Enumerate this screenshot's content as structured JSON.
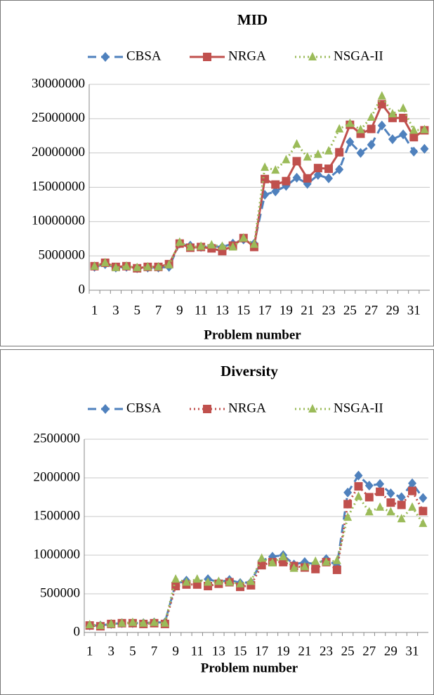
{
  "chart_data": [
    {
      "type": "line",
      "title": "MID",
      "x_label": "Problem number",
      "categories": [
        1,
        null,
        3,
        null,
        5,
        null,
        7,
        null,
        9,
        null,
        11,
        null,
        13,
        null,
        15,
        null,
        17,
        null,
        19,
        null,
        21,
        null,
        23,
        null,
        25,
        null,
        27,
        null,
        29,
        null,
        31,
        null
      ],
      "ylim": [
        0,
        30000000
      ],
      "yticks": [
        0,
        5000000,
        10000000,
        15000000,
        20000000,
        25000000,
        30000000
      ],
      "grid": true,
      "series": [
        {
          "name": "CBSA",
          "color": "#4f81bd",
          "dash": "dashed",
          "marker": "diamond",
          "values": [
            3400000,
            3800000,
            3300000,
            3400000,
            3200000,
            3300000,
            3300000,
            3400000,
            6800000,
            6500000,
            6300000,
            6400000,
            6300000,
            6800000,
            7400000,
            6800000,
            13900000,
            14400000,
            15200000,
            16400000,
            15500000,
            16800000,
            16300000,
            17600000,
            21600000,
            20000000,
            21200000,
            24000000,
            22000000,
            22700000,
            20200000,
            20600000
          ]
        },
        {
          "name": "NRGA",
          "color": "#c0504d",
          "dash": "solid",
          "marker": "square",
          "values": [
            3500000,
            4000000,
            3400000,
            3500000,
            3200000,
            3400000,
            3400000,
            3800000,
            6800000,
            6200000,
            6300000,
            6100000,
            5700000,
            6500000,
            7600000,
            6300000,
            16200000,
            15400000,
            15900000,
            18800000,
            16300000,
            17800000,
            17700000,
            20100000,
            24100000,
            22800000,
            23500000,
            27100000,
            25100000,
            25100000,
            22300000,
            23300000
          ]
        },
        {
          "name": "NSGA-II",
          "color": "#9bbb59",
          "dash": "dotted",
          "marker": "triangle",
          "values": [
            3500000,
            4000000,
            3300000,
            3500000,
            3300000,
            3400000,
            3400000,
            3700000,
            7000000,
            6300000,
            6400000,
            6600000,
            6400000,
            6300000,
            7600000,
            6700000,
            17900000,
            17500000,
            19000000,
            21300000,
            19400000,
            19800000,
            20300000,
            23500000,
            24300000,
            23400000,
            25200000,
            28300000,
            25700000,
            26500000,
            23300000,
            23400000
          ]
        }
      ]
    },
    {
      "type": "line",
      "title": "Diversity",
      "x_label": "Problem number",
      "categories": [
        1,
        null,
        3,
        null,
        5,
        null,
        7,
        null,
        9,
        null,
        11,
        null,
        13,
        null,
        15,
        null,
        17,
        null,
        19,
        null,
        21,
        null,
        23,
        null,
        25,
        null,
        27,
        null,
        29,
        null,
        31,
        null
      ],
      "ylim": [
        0,
        2500000
      ],
      "yticks": [
        0,
        500000,
        1000000,
        1500000,
        2000000,
        2500000
      ],
      "grid": true,
      "series": [
        {
          "name": "CBSA",
          "color": "#4f81bd",
          "dash": "dashed",
          "marker": "diamond",
          "values": [
            90000,
            90000,
            110000,
            120000,
            120000,
            120000,
            130000,
            130000,
            630000,
            670000,
            660000,
            690000,
            650000,
            680000,
            640000,
            650000,
            930000,
            980000,
            1000000,
            880000,
            910000,
            880000,
            950000,
            860000,
            1810000,
            2030000,
            1900000,
            1920000,
            1800000,
            1750000,
            1930000,
            1740000
          ]
        },
        {
          "name": "NRGA",
          "color": "#c0504d",
          "dash": "dotted",
          "marker": "square",
          "values": [
            90000,
            80000,
            110000,
            120000,
            120000,
            110000,
            120000,
            110000,
            600000,
            620000,
            620000,
            600000,
            630000,
            650000,
            590000,
            610000,
            870000,
            910000,
            910000,
            860000,
            840000,
            820000,
            910000,
            810000,
            1660000,
            1890000,
            1750000,
            1820000,
            1680000,
            1650000,
            1830000,
            1570000
          ]
        },
        {
          "name": "NSGA-II",
          "color": "#9bbb59",
          "dash": "dotted",
          "marker": "triangle",
          "values": [
            100000,
            90000,
            110000,
            120000,
            130000,
            120000,
            130000,
            120000,
            690000,
            650000,
            690000,
            650000,
            660000,
            650000,
            630000,
            660000,
            960000,
            900000,
            980000,
            830000,
            850000,
            920000,
            910000,
            930000,
            1490000,
            1760000,
            1560000,
            1620000,
            1560000,
            1470000,
            1620000,
            1410000
          ]
        }
      ]
    }
  ]
}
